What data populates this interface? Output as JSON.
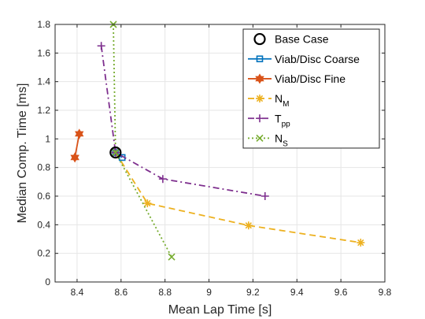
{
  "chart_data": {
    "type": "line",
    "title": "",
    "xlabel": "Mean Lap Time [s]",
    "ylabel": "Median Comp. Time [ms]",
    "xlim": [
      8.3,
      9.8
    ],
    "ylim": [
      0,
      1.8
    ],
    "xticks": [
      "8.4",
      "8.6",
      "8.8",
      "9",
      "9.2",
      "9.4",
      "9.6",
      "9.8"
    ],
    "yticks": [
      "0",
      "0.2",
      "0.4",
      "0.6",
      "0.8",
      "1",
      "1.2",
      "1.4",
      "1.6",
      "1.8"
    ],
    "grid": true,
    "legend_placement": "top-right",
    "series": [
      {
        "name": "Base Case",
        "color": "#000000",
        "marker": "circle",
        "line": "none",
        "x": [
          8.575
        ],
        "y": [
          0.905
        ]
      },
      {
        "name": "Viab/Disc Coarse",
        "color": "#0072BD",
        "marker": "square",
        "line": "solid",
        "x": [
          8.575,
          8.605
        ],
        "y": [
          0.905,
          0.87
        ]
      },
      {
        "name": "Viab/Disc Fine",
        "color": "#D95319",
        "marker": "hexagram",
        "line": "solid",
        "x": [
          8.39,
          8.41
        ],
        "y": [
          0.87,
          1.035
        ]
      },
      {
        "name": "N",
        "name_sub": "M",
        "color": "#EDB120",
        "marker": "asterisk",
        "line": "dashed",
        "x": [
          8.575,
          8.72,
          9.18,
          9.69
        ],
        "y": [
          0.905,
          0.55,
          0.395,
          0.275
        ]
      },
      {
        "name": "T",
        "name_sub": "pp",
        "color": "#7E2F8E",
        "marker": "plus",
        "line": "dashdot",
        "x": [
          8.51,
          8.575,
          8.79,
          9.255
        ],
        "y": [
          1.65,
          0.905,
          0.72,
          0.6
        ]
      },
      {
        "name": "N",
        "name_sub": "S",
        "color": "#77AC30",
        "marker": "x",
        "line": "dotted",
        "x": [
          8.565,
          8.575,
          8.83
        ],
        "y": [
          1.8,
          0.905,
          0.175
        ]
      }
    ]
  }
}
